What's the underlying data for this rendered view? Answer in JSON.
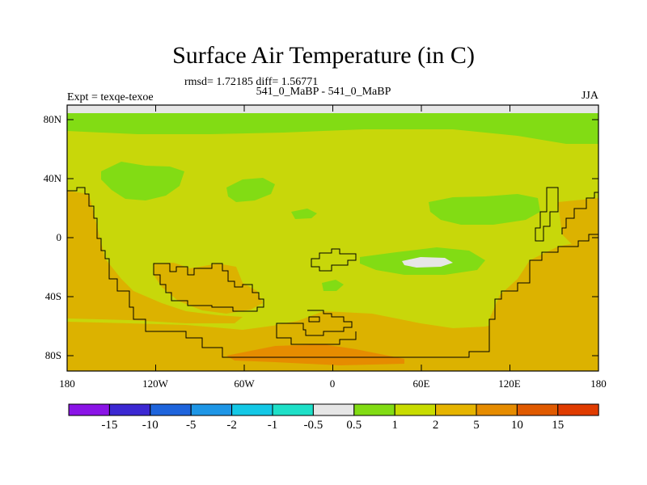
{
  "title": "Surface Air Temperature (in C)",
  "stats": "rmsd= 1.72185 diff= 1.56771",
  "runs": "541_0_MaBP - 541_0_MaBP",
  "expt": "Expt = texqe-texoe",
  "season": "JJA",
  "y_ticks": [
    "80N",
    "40N",
    "0",
    "40S",
    "80S"
  ],
  "x_ticks": [
    "180",
    "120W",
    "60W",
    "0",
    "60E",
    "120E",
    "180"
  ],
  "colorbar": {
    "labels": [
      "-15",
      "-10",
      "-5",
      "-2",
      "-1",
      "-0.5",
      "0.5",
      "1",
      "2",
      "5",
      "10",
      "15"
    ],
    "colors": [
      "#8a14e6",
      "#3c28d2",
      "#1e64dc",
      "#1e96e6",
      "#14c8e6",
      "#1ee0c8",
      "#e6e6e6",
      "#82dc14",
      "#c8dc00",
      "#e6b400",
      "#e68c00",
      "#e05a00",
      "#e03c00"
    ]
  },
  "field_colors": {
    "background": "#c8d70a",
    "cool": "#82dc14",
    "warm": "#dcb200",
    "warmer": "#e6a000",
    "hot": "#e68c00",
    "near_zero": "#e6e6e6"
  }
}
